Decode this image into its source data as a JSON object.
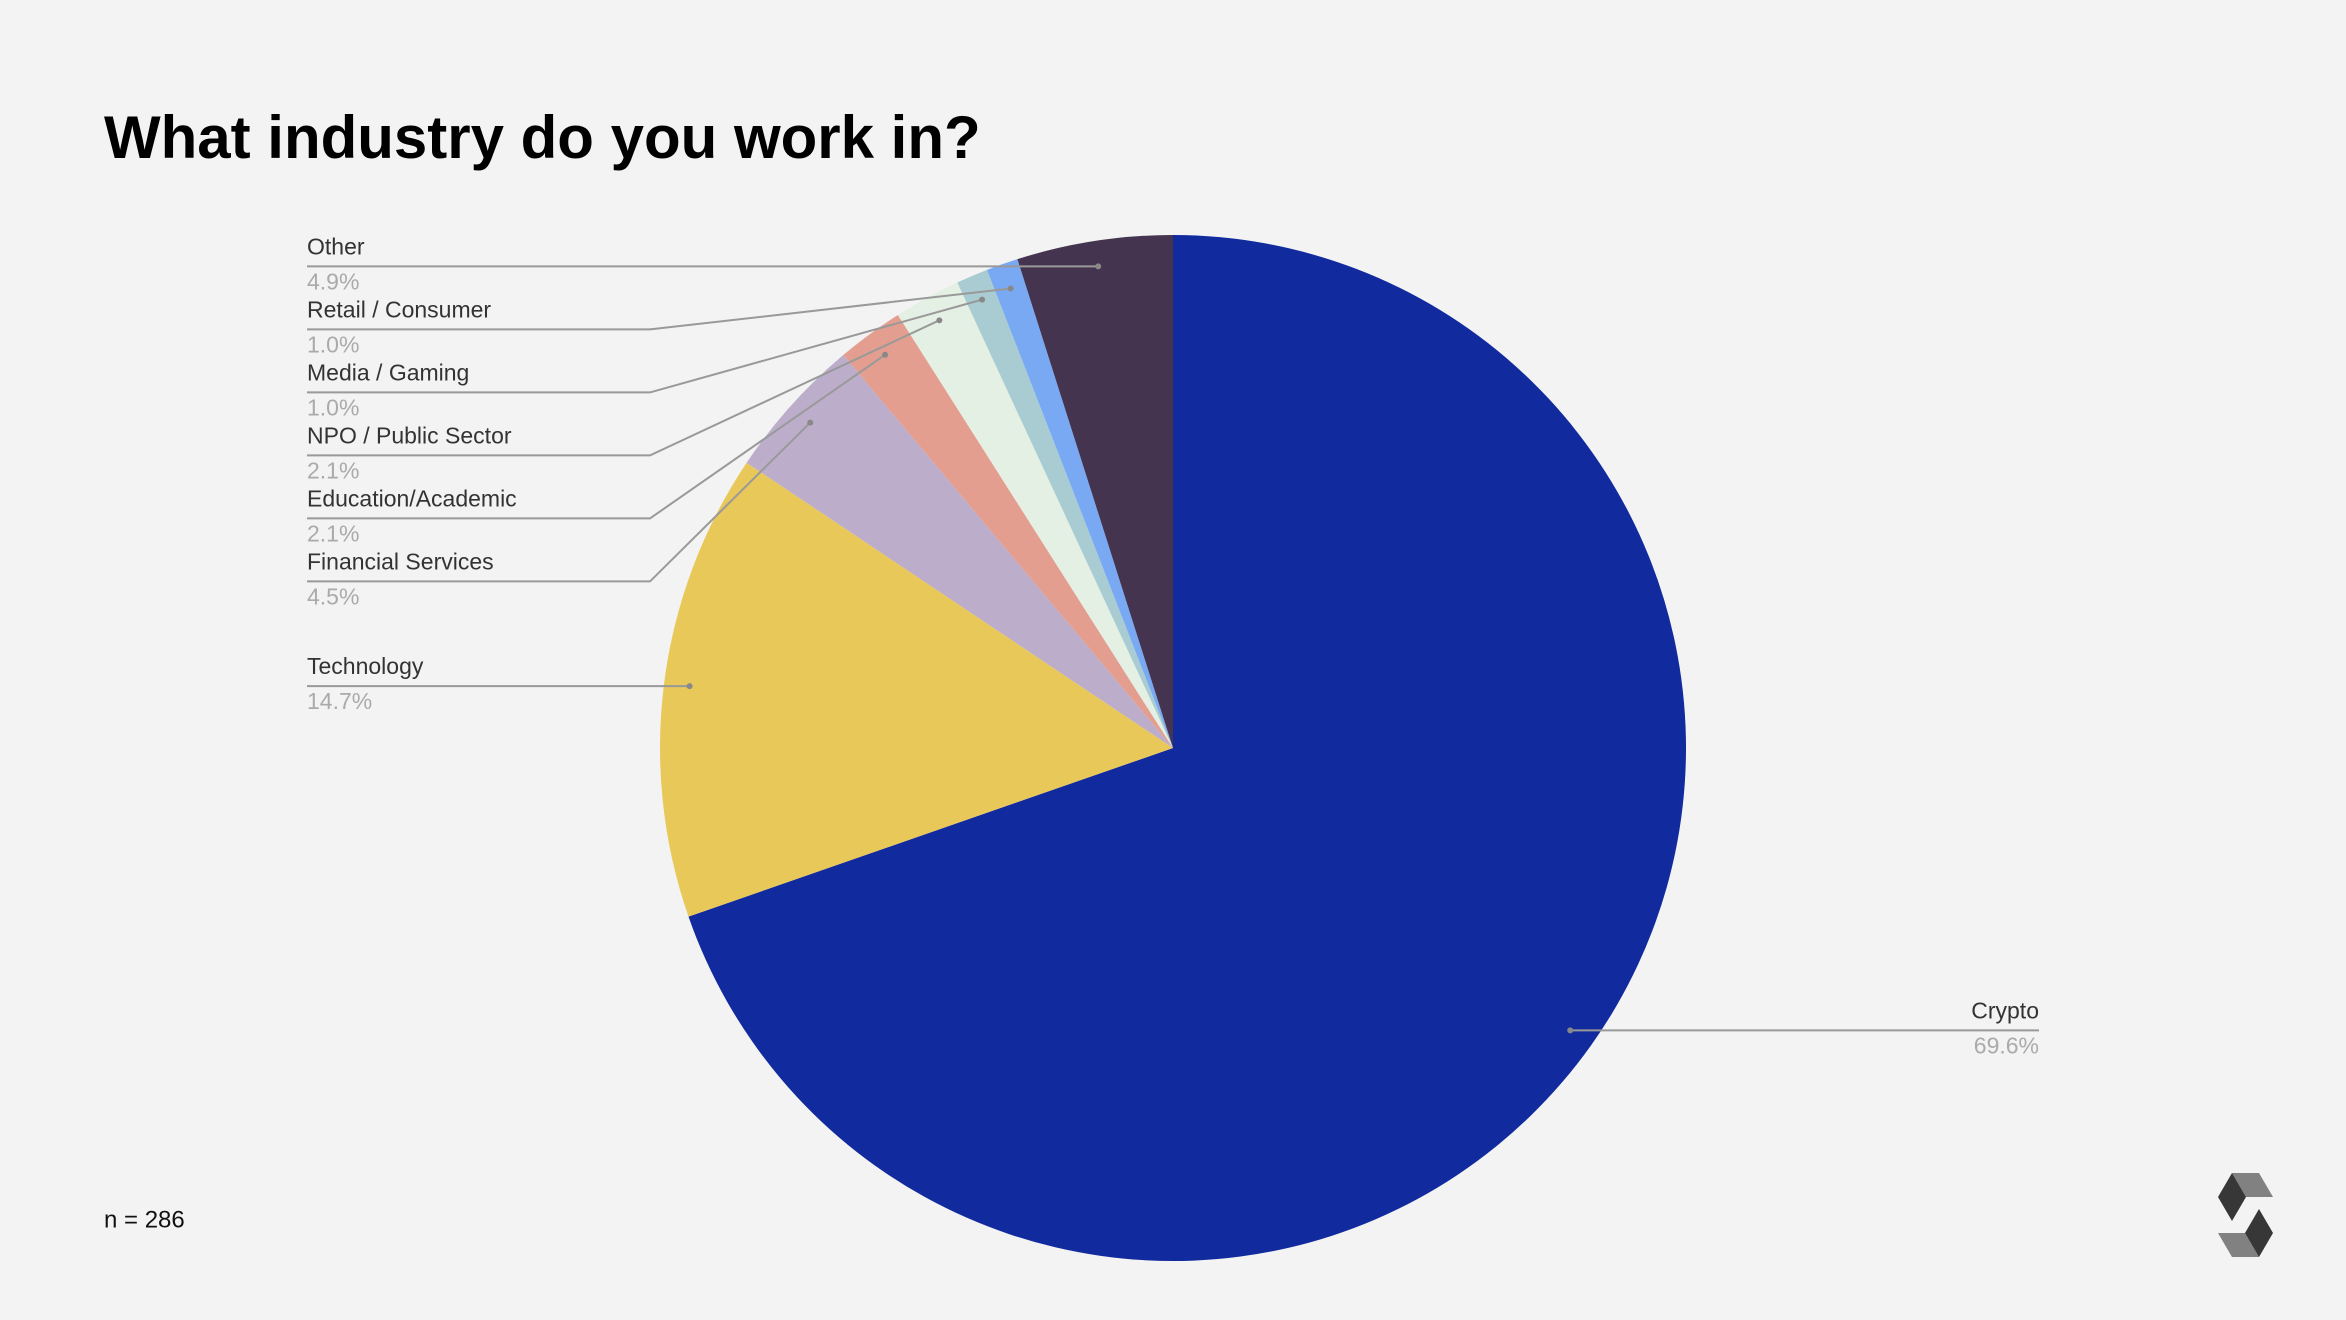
{
  "chart_data": {
    "type": "pie",
    "title": "What industry do you work in?",
    "note": "n = 286",
    "categories": [
      "Crypto",
      "Technology",
      "Financial Services",
      "Education/Academic",
      "NPO / Public Sector",
      "Media / Gaming",
      "Retail / Consumer",
      "Other"
    ],
    "values": [
      69.6,
      14.7,
      4.5,
      2.1,
      2.1,
      1.0,
      1.0,
      4.9
    ],
    "value_labels": [
      "69.6%",
      "14.7%",
      "4.5%",
      "2.1%",
      "2.1%",
      "1.0%",
      "1.0%",
      "4.9%"
    ],
    "colors": [
      "#112a9e",
      "#e9c85a",
      "#bcadcb",
      "#e39e90",
      "#e3f0e3",
      "#a9ccd2",
      "#7aa9f4",
      "#45344f"
    ]
  }
}
